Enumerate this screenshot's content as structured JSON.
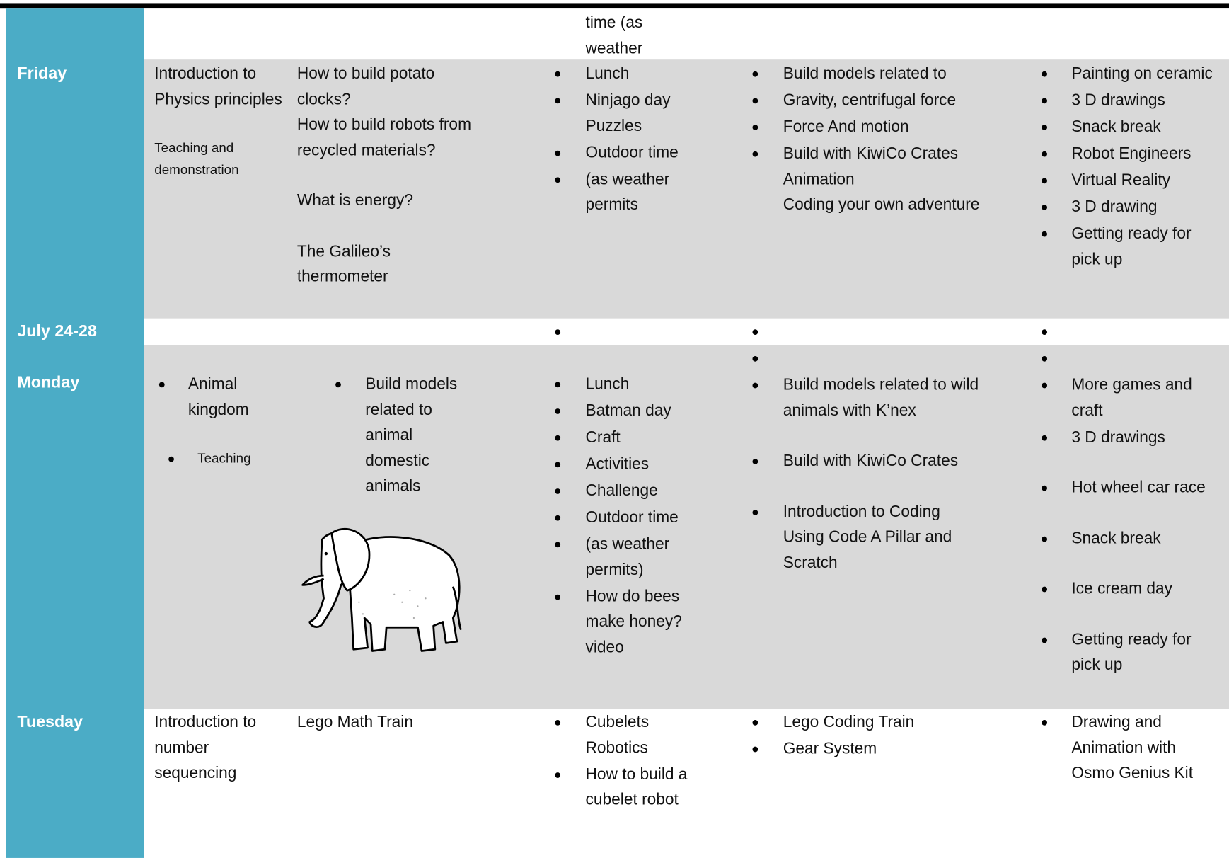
{
  "rows": [
    {
      "cells": [
        null,
        null,
        {
          "groups": [
            {
              "items": [
                {
                  "text": "time (as"
                },
                {
                  "text": "weather"
                }
              ]
            }
          ]
        },
        null,
        null
      ]
    },
    {
      "label": "Friday",
      "cells": [
        {
          "groups": [
            {
              "items": [
                {
                  "text": "Introduction to Physics principles"
                }
              ]
            },
            {
              "small": true,
              "items": [
                {
                  "text": "Teaching and demonstration"
                }
              ]
            }
          ]
        },
        {
          "groups": [
            {
              "items": [
                {
                  "text": "How to build potato clocks?"
                },
                {
                  "text": "How to build robots from recycled materials?"
                }
              ]
            },
            {
              "items": [
                {
                  "text": "What is energy?"
                }
              ]
            },
            {
              "items": [
                {
                  "text": "The Galileo’s thermometer"
                }
              ]
            }
          ]
        },
        {
          "groups": [
            {
              "items": [
                {
                  "bullet": true,
                  "text": "Lunch"
                },
                {
                  "bullet": true,
                  "text": "Ninjago day"
                },
                {
                  "text": "Puzzles"
                },
                {
                  "bullet": true,
                  "text": "Outdoor time"
                },
                {
                  "bullet": true,
                  "text": "(as weather permits"
                }
              ]
            }
          ]
        },
        {
          "groups": [
            {
              "items": [
                {
                  "bullet": true,
                  "text": "Build models  related to"
                },
                {
                  "bullet": true,
                  "text": "Gravity, centrifugal force"
                },
                {
                  "bullet": true,
                  "text": "Force And motion"
                },
                {
                  "bullet": true,
                  "text": "Build with KiwiCo Crates"
                },
                {
                  "text": "Animation"
                },
                {
                  "text": "Coding your own adventure"
                }
              ]
            }
          ]
        },
        {
          "groups": [
            {
              "items": [
                {
                  "bullet": true,
                  "text": "Painting on ceramic"
                },
                {
                  "bullet": true,
                  "text": "3 D drawings"
                },
                {
                  "bullet": true,
                  "text": "Snack break"
                },
                {
                  "bullet": true,
                  "text": "Robot Engineers"
                },
                {
                  "bullet": true,
                  "text": "Virtual Reality"
                },
                {
                  "bullet": true,
                  "text": "3 D drawing"
                },
                {
                  "bullet": true,
                  "text": "Getting ready for pick up"
                }
              ]
            }
          ]
        }
      ]
    },
    {
      "label": "July 24-28",
      "cells": [
        null,
        null,
        {
          "groups": [
            {
              "items": [
                {
                  "bullet": true
                }
              ]
            }
          ]
        },
        {
          "groups": [
            {
              "items": [
                {
                  "bullet": true
                }
              ]
            }
          ]
        },
        {
          "groups": [
            {
              "items": [
                {
                  "bullet": true
                }
              ]
            }
          ]
        }
      ]
    },
    {
      "label": "Monday",
      "cells": [
        {
          "groups": [
            {
              "items": [
                {
                  "bullet": true,
                  "text": "Animal kingdom"
                }
              ]
            },
            {
              "small": true,
              "items": [
                {
                  "bullet": true,
                  "text": "Teaching"
                }
              ]
            }
          ]
        },
        {
          "groups": [
            {
              "items": [
                {
                  "bullet": true,
                  "text": "Build models related to animal domestic animals"
                }
              ]
            }
          ]
        },
        {
          "groups": [
            {
              "items": [
                {
                  "bullet": true,
                  "text": "Lunch"
                },
                {
                  "bullet": true,
                  "text": "Batman day"
                },
                {
                  "bullet": true,
                  "text": "Craft"
                },
                {
                  "bullet": true,
                  "text": "Activities"
                },
                {
                  "bullet": true,
                  "text": "Challenge"
                },
                {
                  "bullet": true,
                  "text": "Outdoor time"
                },
                {
                  "bullet": true,
                  "text": "(as weather permits)"
                },
                {
                  "bullet": true,
                  "text": "How do bees make honey?"
                },
                {
                  "text": "video"
                }
              ]
            }
          ]
        },
        {
          "groups": [
            {
              "items": [
                {
                  "bullet": true
                },
                {
                  "bullet": true,
                  "text": "Build models  related to wild animals with K’nex"
                }
              ]
            },
            {
              "items": [
                {
                  "bullet": true,
                  "text": "Build with KiwiCo Crates"
                }
              ]
            },
            {
              "items": [
                {
                  "bullet": true,
                  "text": "Introduction to Coding Using Code A Pillar and Scratch"
                }
              ]
            }
          ]
        },
        {
          "groups": [
            {
              "items": [
                {
                  "bullet": true
                },
                {
                  "bullet": true,
                  "text": "More games and craft"
                },
                {
                  "bullet": true,
                  "text": "3 D drawings"
                }
              ]
            },
            {
              "items": [
                {
                  "bullet": true,
                  "text": "Hot wheel car race"
                }
              ]
            },
            {
              "items": [
                {
                  "bullet": true,
                  "text": "Snack break"
                }
              ]
            },
            {
              "items": [
                {
                  "bullet": true,
                  "text": "Ice cream day"
                }
              ]
            },
            {
              "items": [
                {
                  "bullet": true,
                  "text": "Getting ready for pick up"
                }
              ]
            }
          ]
        }
      ]
    },
    {
      "label": "Tuesday",
      "cells": [
        {
          "groups": [
            {
              "items": [
                {
                  "text": "Introduction to number sequencing"
                }
              ]
            }
          ]
        },
        {
          "groups": [
            {
              "items": [
                {
                  "text": "Lego Math Train"
                }
              ]
            }
          ]
        },
        {
          "groups": [
            {
              "items": [
                {
                  "bullet": true,
                  "text": "Cubelets Robotics"
                },
                {
                  "bullet": true,
                  "text": "How to build a cubelet robot"
                }
              ]
            }
          ]
        },
        {
          "groups": [
            {
              "items": [
                {
                  "bullet": true,
                  "text": "Lego Coding Train"
                },
                {
                  "bullet": true,
                  "text": "Gear System"
                }
              ]
            }
          ]
        },
        {
          "groups": [
            {
              "items": [
                {
                  "bullet": true,
                  "text": "Drawing and Animation with Osmo Genius Kit"
                }
              ]
            }
          ]
        }
      ]
    }
  ]
}
